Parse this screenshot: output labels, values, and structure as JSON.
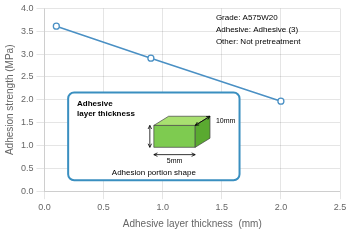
{
  "chart_data": {
    "type": "line",
    "x": [
      0.1,
      0.9,
      2.0
    ],
    "values": [
      3.61,
      2.91,
      1.97
    ],
    "color": "#4a90c4",
    "marker": "circle",
    "xlabel": "Adhesive layer thickness  (mm)",
    "ylabel": "Adhesion strength (MPa)",
    "xlim": [
      0.0,
      2.5
    ],
    "ylim": [
      0.0,
      4.0
    ],
    "xticks": [
      {
        "value": 0,
        "label": "0.0"
      },
      0.5,
      {
        "value": 1,
        "label": "1.0"
      },
      1.5,
      {
        "value": 2,
        "label": "2.0"
      },
      2.5
    ],
    "yticks": [
      {
        "value": 0,
        "label": "0.0"
      },
      0.5,
      {
        "value": 1,
        "label": "1.0"
      },
      1.5,
      {
        "value": 2,
        "label": "2.0"
      },
      2.5,
      {
        "value": 3,
        "label": "3.0"
      },
      3.5,
      {
        "value": 4,
        "label": "4.0"
      }
    ],
    "grid": true,
    "annotations": [
      "Grade: A575W20\nAdhesive: Adhesive (3)\nOther: Not pretreatment",
      "Adhesive\nlayer thickness",
      "Adhesion portion shape",
      "5mm",
      "10mm"
    ]
  }
}
